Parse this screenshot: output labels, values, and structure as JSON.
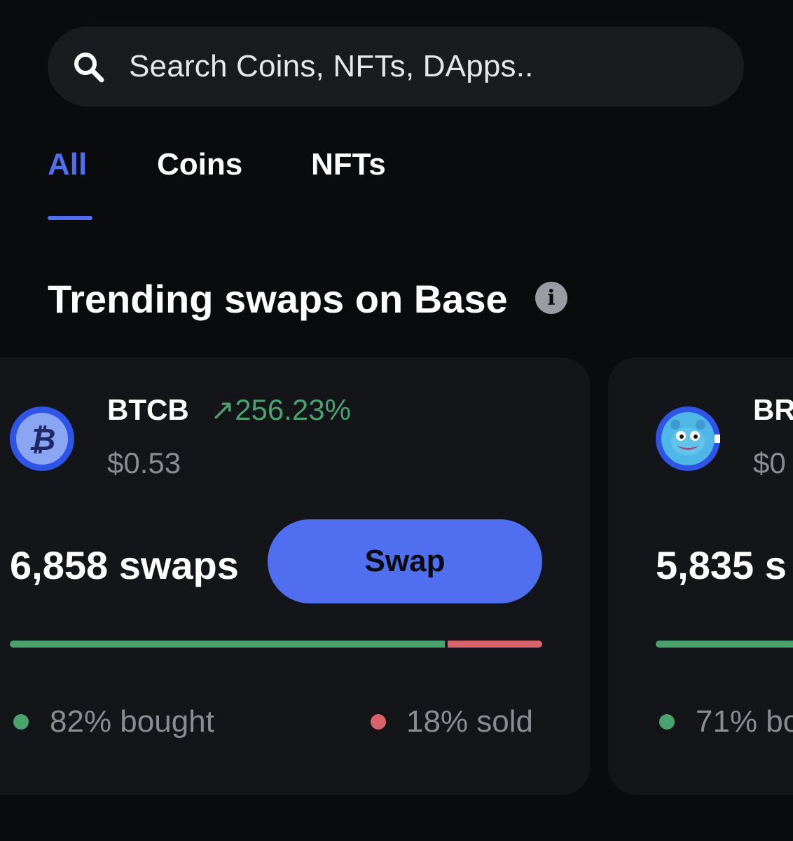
{
  "search": {
    "placeholder": "Search Coins, NFTs, DApps.."
  },
  "tabs": [
    {
      "label": "All",
      "active": true
    },
    {
      "label": "Coins",
      "active": false
    },
    {
      "label": "NFTs",
      "active": false
    }
  ],
  "section": {
    "title": "Trending swaps on Base",
    "info_icon": "info-icon"
  },
  "cards": [
    {
      "symbol": "BTCB",
      "change": "↗256.23%",
      "price": "$0.53",
      "swaps": "6,858 swaps",
      "swap_label": "Swap",
      "bought_pct": 82,
      "bought_label": "82% bought",
      "sold_label": "18% sold",
      "logo_icon": "bitcoin-icon"
    },
    {
      "symbol": "BR",
      "price": "$0",
      "swaps": "5,835 s",
      "bought_pct": 71,
      "bought_label": "71% bo",
      "logo_icon": "frog-avatar-icon"
    }
  ],
  "colors": {
    "accent": "#4f6ef0",
    "positive": "#4aa36e",
    "negative": "#d9636b",
    "background": "#0a0b0d",
    "card": "#141519"
  }
}
